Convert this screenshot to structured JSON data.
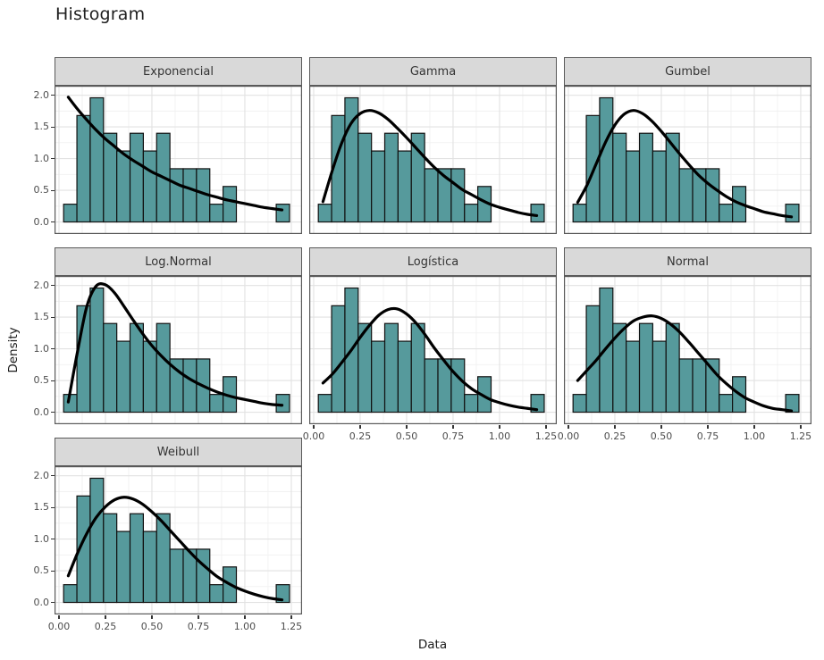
{
  "title": "Histogram",
  "chart_data": {
    "type": "histogram",
    "title": "Histogram",
    "xlabel": "Data",
    "ylabel": "Density",
    "x_tick_labels": [
      "0.00",
      "0.25",
      "0.50",
      "0.75",
      "1.00",
      "1.25"
    ],
    "x_tick_values": [
      0,
      0.25,
      0.5,
      0.75,
      1.0,
      1.25
    ],
    "y_tick_labels": [
      "0.0",
      "0.5",
      "1.0",
      "1.5",
      "2.0"
    ],
    "y_tick_values": [
      0,
      0.5,
      1.0,
      1.5,
      2.0
    ],
    "x_minor_gridlines": [
      0.125,
      0.375,
      0.625,
      0.875,
      1.125
    ],
    "y_minor_gridlines": [
      0.25,
      0.75,
      1.25,
      1.75
    ],
    "xlim": [
      -0.024,
      1.308
    ],
    "ylim": [
      -0.19,
      2.15
    ],
    "grid": "on",
    "legend": "none",
    "histogram": {
      "bin_start": 0.025,
      "bin_width": 0.0715,
      "n": 50,
      "counts": [
        1,
        6,
        7,
        5,
        4,
        5,
        4,
        5,
        3,
        3,
        3,
        1,
        2,
        0,
        0,
        0,
        1
      ],
      "densities": [
        0.28,
        1.68,
        1.96,
        1.4,
        1.12,
        1.4,
        1.12,
        1.4,
        0.84,
        0.84,
        0.84,
        0.28,
        0.56,
        0,
        0,
        0,
        0.28
      ]
    },
    "curve_x": [
      0.05,
      0.1,
      0.15,
      0.2,
      0.25,
      0.3,
      0.35,
      0.4,
      0.45,
      0.5,
      0.55,
      0.6,
      0.65,
      0.7,
      0.75,
      0.8,
      0.85,
      0.9,
      0.95,
      1.0,
      1.05,
      1.1,
      1.15,
      1.2
    ],
    "facets": [
      {
        "label": "Exponencial",
        "row": 0,
        "col": 0,
        "curve_y": [
          1.97,
          1.78,
          1.61,
          1.45,
          1.31,
          1.19,
          1.07,
          0.97,
          0.88,
          0.79,
          0.72,
          0.65,
          0.58,
          0.53,
          0.48,
          0.43,
          0.39,
          0.35,
          0.32,
          0.29,
          0.26,
          0.23,
          0.21,
          0.19
        ]
      },
      {
        "label": "Gamma",
        "row": 0,
        "col": 1,
        "curve_y": [
          0.32,
          0.81,
          1.24,
          1.55,
          1.71,
          1.76,
          1.72,
          1.62,
          1.48,
          1.33,
          1.17,
          1.01,
          0.86,
          0.73,
          0.62,
          0.51,
          0.43,
          0.35,
          0.28,
          0.23,
          0.19,
          0.15,
          0.12,
          0.1
        ]
      },
      {
        "label": "Gumbel",
        "row": 0,
        "col": 2,
        "curve_y": [
          0.31,
          0.58,
          0.92,
          1.26,
          1.53,
          1.7,
          1.76,
          1.71,
          1.59,
          1.43,
          1.25,
          1.07,
          0.9,
          0.74,
          0.61,
          0.5,
          0.4,
          0.32,
          0.26,
          0.21,
          0.16,
          0.13,
          0.1,
          0.08
        ]
      },
      {
        "label": "Log.Normal",
        "row": 1,
        "col": 0,
        "curve_y": [
          0.16,
          0.96,
          1.67,
          1.99,
          2.01,
          1.88,
          1.67,
          1.45,
          1.24,
          1.05,
          0.89,
          0.75,
          0.63,
          0.53,
          0.45,
          0.38,
          0.32,
          0.27,
          0.23,
          0.2,
          0.17,
          0.14,
          0.12,
          0.11
        ]
      },
      {
        "label": "Logística",
        "row": 1,
        "col": 1,
        "curve_y": [
          0.46,
          0.6,
          0.78,
          0.97,
          1.18,
          1.37,
          1.53,
          1.62,
          1.63,
          1.55,
          1.41,
          1.22,
          1.01,
          0.82,
          0.64,
          0.49,
          0.37,
          0.28,
          0.2,
          0.15,
          0.11,
          0.08,
          0.06,
          0.04
        ]
      },
      {
        "label": "Normal",
        "row": 1,
        "col": 2,
        "curve_y": [
          0.5,
          0.66,
          0.82,
          1.0,
          1.17,
          1.32,
          1.44,
          1.5,
          1.52,
          1.48,
          1.39,
          1.26,
          1.1,
          0.93,
          0.76,
          0.59,
          0.45,
          0.33,
          0.23,
          0.16,
          0.1,
          0.06,
          0.04,
          0.02
        ]
      },
      {
        "label": "Weibull",
        "row": 2,
        "col": 0,
        "curve_y": [
          0.42,
          0.78,
          1.09,
          1.34,
          1.51,
          1.62,
          1.66,
          1.63,
          1.55,
          1.43,
          1.29,
          1.13,
          0.97,
          0.81,
          0.66,
          0.53,
          0.41,
          0.32,
          0.24,
          0.18,
          0.13,
          0.09,
          0.06,
          0.04
        ]
      }
    ],
    "bottom_axis_panels": [
      {
        "row": 1,
        "col": 1
      },
      {
        "row": 1,
        "col": 2
      },
      {
        "row": 2,
        "col": 0
      }
    ],
    "colors": {
      "bar_fill": "#569A9C",
      "bar_stroke": "#111111",
      "curve": "#000000",
      "strip_bg": "#D9D9D9",
      "strip_text": "#333333",
      "panel_border": "#595959",
      "grid_major": "#E2E2E2",
      "grid_minor": "#F1F1F1",
      "panel_bg": "#FFFFFF",
      "tick_text": "#4D4D4D"
    }
  }
}
